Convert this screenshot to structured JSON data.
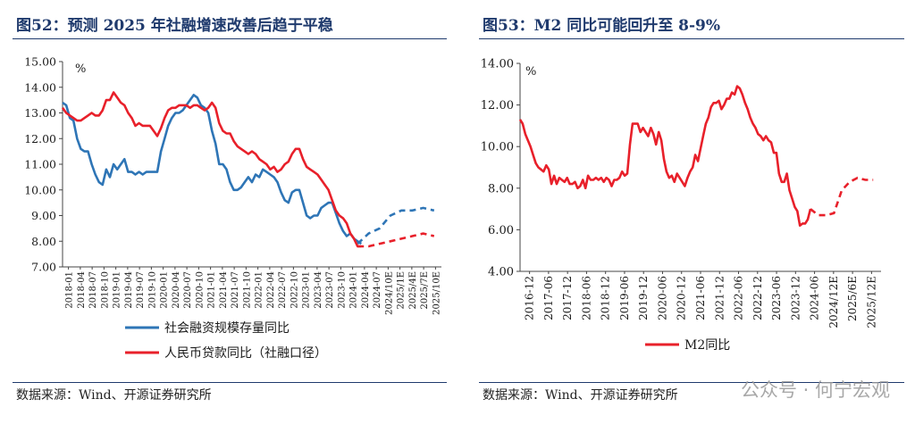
{
  "figures": [
    {
      "title": "图52：预测 2025 年社融增速改善后趋于平稳",
      "source": "数据来源：Wind、开源证券研究所"
    },
    {
      "title": "图53：M2 同比可能回升至 8-9%",
      "source": "数据来源：Wind、开源证券研究所"
    }
  ],
  "watermark": "公众号 · 何宁宏观",
  "chart_data": [
    {
      "type": "line",
      "title": "图52：预测 2025 年社融增速改善后趋于平稳",
      "ylabel": "%",
      "ylim": [
        7.0,
        15.0
      ],
      "yticks": [
        "7.00",
        "8.00",
        "9.00",
        "10.00",
        "11.00",
        "12.00",
        "13.00",
        "14.00",
        "15.00"
      ],
      "xticks": [
        "2018-01",
        "2018-04",
        "2018-07",
        "2018-10",
        "2019-01",
        "2019-04",
        "2019-07",
        "2019-10",
        "2020-01",
        "2020-04",
        "2020-07",
        "2020-10",
        "2021-01",
        "2021-04",
        "2021-07",
        "2021-10",
        "2022-01",
        "2022-04",
        "2022-07",
        "2022-10",
        "2023-01",
        "2023-04",
        "2023-07",
        "2023-10",
        "2024-01",
        "2024-04",
        "2024-07",
        "2024/10E",
        "2025/1E",
        "2025/4E",
        "2025/7E",
        "2025/10E"
      ],
      "legend_position": "bottom",
      "colors": {
        "series1": "#2e75b6",
        "series2": "#e8202a"
      },
      "series": [
        {
          "name": "社会融资规模存量同比",
          "values": [
            13.4,
            13.3,
            12.8,
            12.7,
            12.0,
            11.6,
            11.5,
            11.5,
            11.0,
            10.6,
            10.3,
            10.2,
            10.8,
            10.5,
            11.0,
            10.8,
            11.0,
            11.2,
            10.7,
            10.7,
            10.6,
            10.7,
            10.6,
            10.7,
            10.7,
            10.7,
            10.7,
            11.5,
            12.0,
            12.5,
            12.8,
            13.0,
            13.0,
            13.1,
            13.3,
            13.5,
            13.7,
            13.6,
            13.3,
            13.2,
            13.0,
            12.3,
            11.8,
            11.0,
            11.0,
            10.8,
            10.3,
            10.0,
            10.0,
            10.1,
            10.3,
            10.5,
            10.3,
            10.6,
            10.5,
            10.8,
            10.7,
            10.6,
            10.5,
            10.3,
            9.9,
            9.6,
            9.5,
            9.9,
            10.0,
            10.0,
            9.5,
            9.0,
            8.9,
            9.0,
            9.0,
            9.3,
            9.4,
            9.5,
            9.5,
            9.1,
            8.7,
            8.4,
            8.2,
            8.3,
            8.1,
            8.0,
            7.9
          ],
          "forecast": [
            [
              81,
              7.9
            ],
            [
              84,
              8.3
            ],
            [
              87,
              8.5
            ],
            [
              90,
              9.0
            ],
            [
              93,
              9.2
            ],
            [
              96,
              9.2
            ],
            [
              99,
              9.3
            ],
            [
              102,
              9.2
            ]
          ]
        },
        {
          "name": "人民币贷款同比（社融口径）",
          "values": [
            13.2,
            13.0,
            12.9,
            12.8,
            12.7,
            12.7,
            12.8,
            12.9,
            13.0,
            12.9,
            12.9,
            13.1,
            13.5,
            13.5,
            13.8,
            13.6,
            13.4,
            13.3,
            13.0,
            12.8,
            12.5,
            12.6,
            12.5,
            12.5,
            12.5,
            12.3,
            12.1,
            12.4,
            12.8,
            13.1,
            13.2,
            13.2,
            13.3,
            13.3,
            13.3,
            13.2,
            13.3,
            13.3,
            13.2,
            13.1,
            13.2,
            13.4,
            13.2,
            12.6,
            12.3,
            12.2,
            12.2,
            11.9,
            11.7,
            11.6,
            11.5,
            11.4,
            11.5,
            11.4,
            11.2,
            11.1,
            11.0,
            10.8,
            10.9,
            10.7,
            10.8,
            11.0,
            11.1,
            11.4,
            11.6,
            11.6,
            11.2,
            10.9,
            10.8,
            10.7,
            10.6,
            10.4,
            10.2,
            10.0,
            9.6,
            9.2,
            9.0,
            8.9,
            8.7,
            8.3,
            8.1,
            7.8,
            7.8
          ],
          "forecast": [
            [
              81,
              7.8
            ],
            [
              84,
              7.8
            ],
            [
              87,
              7.9
            ],
            [
              90,
              8.0
            ],
            [
              93,
              8.1
            ],
            [
              96,
              8.2
            ],
            [
              99,
              8.3
            ],
            [
              102,
              8.2
            ]
          ]
        }
      ]
    },
    {
      "type": "line",
      "title": "图53：M2 同比可能回升至 8-9%",
      "ylabel": "%",
      "ylim": [
        4.0,
        14.0
      ],
      "yticks": [
        "4.00",
        "6.00",
        "8.00",
        "10.00",
        "12.00",
        "14.00"
      ],
      "xticks": [
        "2016-12",
        "2017-06",
        "2017-12",
        "2018-06",
        "2018-12",
        "2019-06",
        "2019-12",
        "2020-06",
        "2020-12",
        "2021-06",
        "2021-12",
        "2022-06",
        "2022-12",
        "2023-06",
        "2023-12",
        "2024-06",
        "2024/12E",
        "2025/6E",
        "2025/12E"
      ],
      "legend_position": "bottom",
      "colors": {
        "series1": "#e8202a"
      },
      "series": [
        {
          "name": "M2同比",
          "values": [
            11.3,
            11.1,
            10.6,
            10.3,
            10.0,
            9.6,
            9.2,
            9.0,
            8.9,
            8.8,
            9.1,
            8.9,
            8.2,
            8.6,
            8.2,
            8.5,
            8.4,
            8.3,
            8.5,
            8.2,
            8.2,
            8.3,
            8.0,
            8.1,
            8.4,
            8.0,
            8.6,
            8.4,
            8.4,
            8.5,
            8.4,
            8.5,
            8.3,
            8.5,
            8.4,
            8.1,
            8.4,
            8.4,
            8.5,
            8.8,
            8.6,
            8.7,
            10.1,
            11.1,
            11.1,
            11.1,
            10.7,
            10.9,
            10.7,
            10.5,
            10.9,
            10.6,
            10.1,
            10.7,
            10.3,
            9.4,
            8.8,
            8.5,
            8.6,
            8.3,
            8.7,
            8.5,
            8.3,
            8.1,
            8.5,
            8.8,
            9.0,
            9.6,
            9.3,
            9.9,
            10.5,
            11.1,
            11.4,
            11.9,
            12.1,
            12.1,
            12.2,
            11.8,
            12.0,
            12.3,
            12.3,
            12.6,
            12.5,
            12.9,
            12.8,
            12.5,
            12.1,
            11.8,
            11.4,
            11.1,
            10.9,
            10.6,
            10.5,
            10.3,
            10.5,
            10.3,
            10.2,
            9.7,
            9.7,
            8.7,
            8.3,
            8.3,
            8.7,
            7.9,
            7.5,
            7.1,
            6.9,
            6.2,
            6.3,
            6.3,
            6.5,
            7.0
          ],
          "forecast": [
            [
              111,
              7.0
            ],
            [
              114,
              6.7
            ],
            [
              117,
              6.7
            ],
            [
              120,
              6.8
            ],
            [
              123,
              7.9
            ],
            [
              126,
              8.3
            ],
            [
              129,
              8.5
            ],
            [
              132,
              8.4
            ],
            [
              135,
              8.4
            ]
          ]
        }
      ]
    }
  ]
}
